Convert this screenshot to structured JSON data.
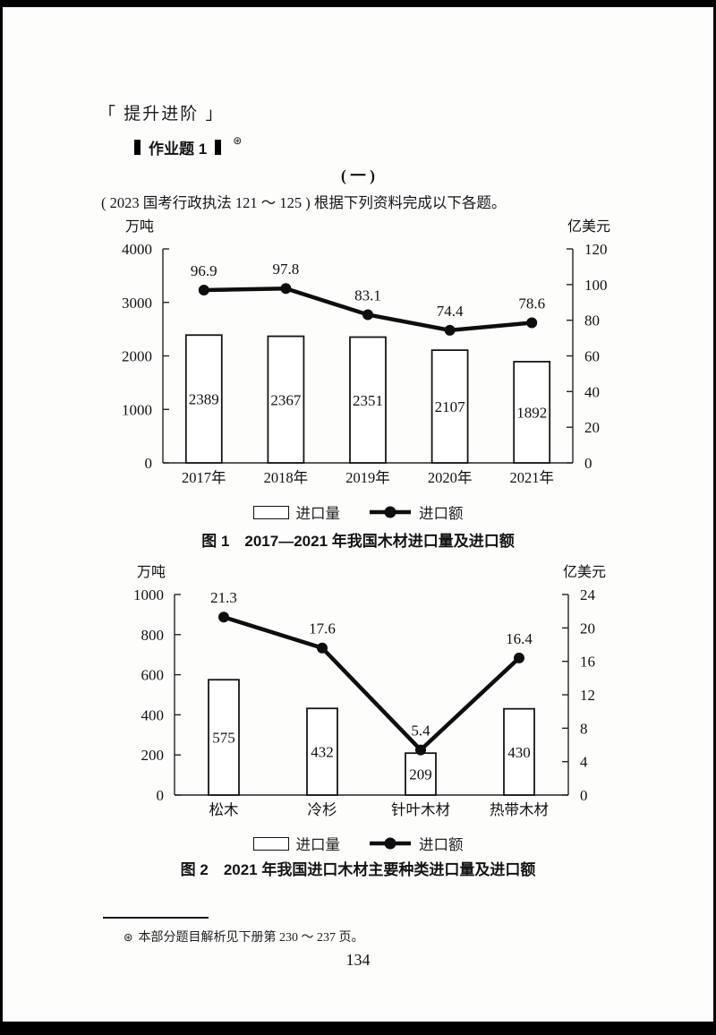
{
  "page": {
    "section_header": "「 提升进阶 」",
    "exercise": {
      "label": "作业题 1",
      "marker": "⊛"
    },
    "part_title": "( 一 )",
    "intro": "( 2023 国考行政执法 121 ～ 125 ) 根据下列资料完成以下各题。",
    "footnote": {
      "marker": "⊛",
      "text": "本部分题目解析见下册第 230 ～ 237 页。"
    },
    "page_number": "134"
  },
  "chart_data": [
    {
      "type": "bar",
      "subtype": "bar+line-dual-axis",
      "title": "图 1　2017—2021 年我国木材进口量及进口额",
      "categories": [
        "2017年",
        "2018年",
        "2019年",
        "2020年",
        "2021年"
      ],
      "series": [
        {
          "name": "进口量",
          "type": "bar",
          "axis": "left",
          "values": [
            2389,
            2367,
            2351,
            2107,
            1892
          ]
        },
        {
          "name": "进口额",
          "type": "line",
          "axis": "right",
          "values": [
            96.9,
            97.8,
            83.1,
            74.4,
            78.6
          ]
        }
      ],
      "left_axis": {
        "label": "万吨",
        "min": 0,
        "max": 4000,
        "ticks": [
          0,
          1000,
          2000,
          3000,
          4000
        ]
      },
      "right_axis": {
        "label": "亿美元",
        "min": 0,
        "max": 120,
        "ticks": [
          0,
          20,
          40,
          60,
          80,
          100,
          120
        ]
      },
      "legend": [
        "进口量",
        "进口额"
      ],
      "legend_position": "bottom",
      "grid": false
    },
    {
      "type": "bar",
      "subtype": "bar+line-dual-axis",
      "title": "图 2　2021 年我国进口木材主要种类进口量及进口额",
      "categories": [
        "松木",
        "冷杉",
        "针叶木材",
        "热带木材"
      ],
      "series": [
        {
          "name": "进口量",
          "type": "bar",
          "axis": "left",
          "values": [
            575,
            432,
            209,
            430
          ]
        },
        {
          "name": "进口额",
          "type": "line",
          "axis": "right",
          "values": [
            21.3,
            17.6,
            5.4,
            16.4
          ]
        }
      ],
      "left_axis": {
        "label": "万吨",
        "min": 0,
        "max": 1000,
        "ticks": [
          0,
          200,
          400,
          600,
          800,
          1000
        ]
      },
      "right_axis": {
        "label": "亿美元",
        "min": 0,
        "max": 24,
        "ticks": [
          0,
          4,
          8,
          12,
          16,
          20,
          24
        ]
      },
      "legend": [
        "进口量",
        "进口额"
      ],
      "legend_position": "bottom",
      "grid": false
    }
  ]
}
